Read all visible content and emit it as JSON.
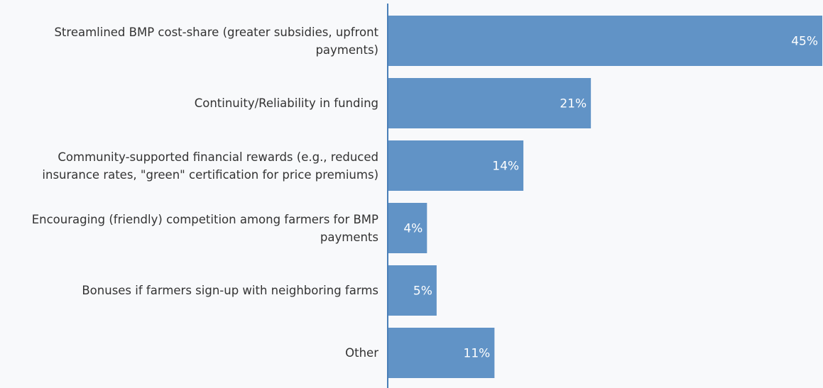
{
  "chart_data": {
    "type": "bar",
    "orientation": "horizontal",
    "categories": [
      "Streamlined BMP cost-share (greater subsidies, upfront payments)",
      "Continuity/Reliability in funding",
      "Community-supported financial rewards (e.g., reduced insurance rates, \"green\" certification for price premiums)",
      "Encouraging (friendly) competition among farmers for BMP payments",
      "Bonuses if farmers sign-up with neighboring farms",
      "Other"
    ],
    "values": [
      45,
      21,
      14,
      4,
      5,
      11
    ],
    "value_labels": [
      "45%",
      "21%",
      "14%",
      "4%",
      "5%",
      "11%"
    ],
    "color": "#6193c6"
  }
}
